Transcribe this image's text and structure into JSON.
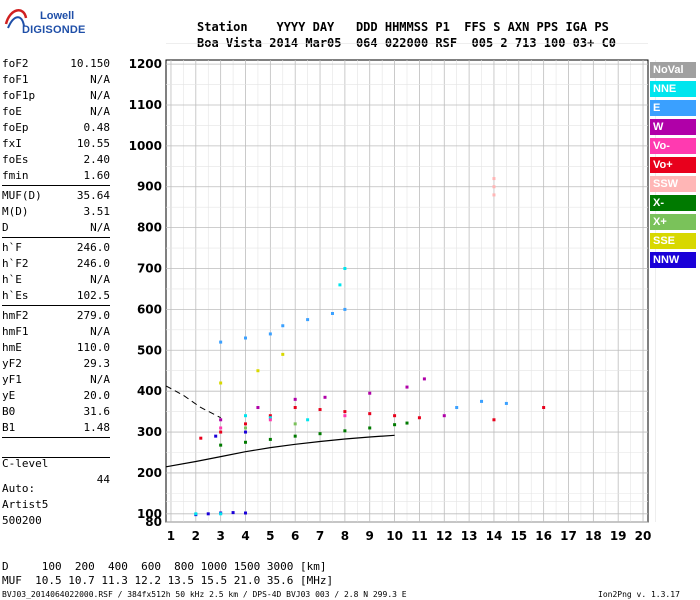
{
  "logo": {
    "line1": "Lowell",
    "line2": "DIGISONDE"
  },
  "header": {
    "labels": "Station    YYYY DAY   DDD HHMMSS P1  FFS S AXN PPS IGA PS",
    "values": "Boa Vista 2014 Mar05  064 022000 RSF  005 2 713 100 03+ C0"
  },
  "params": {
    "group1": [
      {
        "name": "foF2",
        "value": "10.150"
      },
      {
        "name": "foF1",
        "value": "N/A"
      },
      {
        "name": "foF1p",
        "value": "N/A"
      },
      {
        "name": "foE",
        "value": "N/A"
      },
      {
        "name": "foEp",
        "value": "0.48"
      },
      {
        "name": "fxI",
        "value": "10.55"
      },
      {
        "name": "foEs",
        "value": "2.40"
      },
      {
        "name": "fmin",
        "value": "1.60"
      }
    ],
    "group2": [
      {
        "name": "MUF(D)",
        "value": "35.64"
      },
      {
        "name": "M(D)",
        "value": "3.51"
      },
      {
        "name": "D",
        "value": "N/A"
      }
    ],
    "group3": [
      {
        "name": "h`F",
        "value": "246.0"
      },
      {
        "name": "h`F2",
        "value": "246.0"
      },
      {
        "name": "h`E",
        "value": "N/A"
      },
      {
        "name": "h`Es",
        "value": "102.5"
      }
    ],
    "group4": [
      {
        "name": "hmF2",
        "value": "279.0"
      },
      {
        "name": "hmF1",
        "value": "N/A"
      },
      {
        "name": "hmE",
        "value": "110.0"
      },
      {
        "name": "yF2",
        "value": "29.3"
      },
      {
        "name": "yF1",
        "value": "N/A"
      },
      {
        "name": "yE",
        "value": "20.0"
      },
      {
        "name": "B0",
        "value": "31.6"
      },
      {
        "name": "B1",
        "value": "1.48"
      }
    ],
    "clevel": {
      "name": "C-level",
      "value": "44"
    }
  },
  "auto": {
    "line1": "Auto:",
    "line2": "Artist5",
    "line3": "500200"
  },
  "legend": [
    {
      "label": "NoVal",
      "color": "#a0a0a0"
    },
    {
      "label": "NNE",
      "color": "#00e5ee"
    },
    {
      "label": "E",
      "color": "#3aa0ff"
    },
    {
      "label": "W",
      "color": "#b000a8"
    },
    {
      "label": "Vo-",
      "color": "#ff3ab0"
    },
    {
      "label": "Vo+",
      "color": "#e8001c"
    },
    {
      "label": "SSW",
      "color": "#ffb6b6"
    },
    {
      "label": "X-",
      "color": "#007a00"
    },
    {
      "label": "X+",
      "color": "#7ac25a"
    },
    {
      "label": "SSE",
      "color": "#d8d800"
    },
    {
      "label": "NNW",
      "color": "#1a00d8"
    }
  ],
  "footer": {
    "d_line": "D     100  200  400  600  800 1000 1500 3000 [km]",
    "muf_line": "MUF  10.5 10.7 11.3 12.2 13.5 15.5 21.0 35.6 [MHz]",
    "file_line": "BVJ03_2014064022000.RSF / 384fx512h 50 kHz 2.5 km / DPS-4D BVJ03 003 / 2.8 N 299.3 E",
    "version": "Ion2Png v. 1.3.17"
  },
  "chart_data": {
    "type": "scatter",
    "title": "",
    "xlabel": "",
    "ylabel": "",
    "x_ticks": [
      1,
      2,
      3,
      4,
      5,
      6,
      7,
      8,
      9,
      10,
      11,
      12,
      13,
      14,
      15,
      16,
      17,
      18,
      19,
      20
    ],
    "y_ticks": [
      80,
      100,
      200,
      300,
      400,
      500,
      600,
      700,
      800,
      900,
      1000,
      1100,
      1200
    ],
    "xlim": [
      0.8,
      20.2
    ],
    "ylim": [
      80,
      1210
    ],
    "grid": true,
    "legend_position": "right",
    "series": [
      {
        "name": "X-",
        "color": "#007a00",
        "points": [
          [
            3,
            268
          ],
          [
            4,
            275
          ],
          [
            5,
            282
          ],
          [
            6,
            290
          ],
          [
            7,
            296
          ],
          [
            8,
            303
          ],
          [
            9,
            310
          ],
          [
            10,
            318
          ],
          [
            10.5,
            322
          ]
        ]
      },
      {
        "name": "E",
        "color": "#3aa0ff",
        "points": [
          [
            3,
            520
          ],
          [
            4,
            530
          ],
          [
            5,
            540
          ],
          [
            5.5,
            560
          ],
          [
            6.5,
            575
          ],
          [
            7.5,
            590
          ],
          [
            8,
            600
          ],
          [
            12.5,
            360
          ],
          [
            13.5,
            375
          ],
          [
            14.5,
            370
          ]
        ]
      },
      {
        "name": "W",
        "color": "#b000a8",
        "points": [
          [
            3,
            330
          ],
          [
            4.5,
            360
          ],
          [
            6,
            380
          ],
          [
            7.2,
            385
          ],
          [
            9,
            395
          ],
          [
            10.5,
            410
          ],
          [
            11.2,
            430
          ],
          [
            12,
            340
          ]
        ]
      },
      {
        "name": "Vo+",
        "color": "#e8001c",
        "points": [
          [
            2.2,
            285
          ],
          [
            3,
            300
          ],
          [
            4,
            320
          ],
          [
            5,
            340
          ],
          [
            6,
            360
          ],
          [
            7,
            355
          ],
          [
            8,
            350
          ],
          [
            9,
            345
          ],
          [
            10,
            340
          ],
          [
            11,
            335
          ],
          [
            14,
            330
          ],
          [
            16,
            360
          ]
        ]
      },
      {
        "name": "NNW",
        "color": "#1a00d8",
        "points": [
          [
            2,
            98
          ],
          [
            2.5,
            100
          ],
          [
            3,
            102
          ],
          [
            3.5,
            103
          ],
          [
            4,
            102
          ],
          [
            2.8,
            290
          ],
          [
            4,
            300
          ]
        ]
      },
      {
        "name": "NNE",
        "color": "#00e5ee",
        "points": [
          [
            2,
            100
          ],
          [
            3,
            100
          ],
          [
            4,
            340
          ],
          [
            5,
            335
          ],
          [
            6.5,
            330
          ],
          [
            7.8,
            660
          ],
          [
            8,
            700
          ]
        ]
      },
      {
        "name": "SSE",
        "color": "#d8d800",
        "points": [
          [
            3,
            420
          ],
          [
            4.5,
            450
          ],
          [
            5.5,
            490
          ]
        ]
      },
      {
        "name": "Vo-",
        "color": "#ff3ab0",
        "points": [
          [
            3,
            310
          ],
          [
            5,
            330
          ],
          [
            8,
            340
          ]
        ]
      },
      {
        "name": "SSW",
        "color": "#ffb6b6",
        "points": [
          [
            14,
            880
          ],
          [
            14,
            900
          ],
          [
            14,
            920
          ]
        ]
      },
      {
        "name": "X+",
        "color": "#7ac25a",
        "points": [
          [
            4,
            310
          ],
          [
            6,
            320
          ]
        ]
      }
    ],
    "profile_curve": [
      [
        0.8,
        215
      ],
      [
        2,
        228
      ],
      [
        3,
        240
      ],
      [
        4,
        252
      ],
      [
        5,
        262
      ],
      [
        6,
        270
      ],
      [
        7,
        277
      ],
      [
        8,
        283
      ],
      [
        9,
        288
      ],
      [
        10,
        292
      ]
    ],
    "profile_tail": [
      [
        0.8,
        413
      ],
      [
        1.5,
        390
      ],
      [
        2.2,
        360
      ],
      [
        3,
        335
      ]
    ]
  }
}
